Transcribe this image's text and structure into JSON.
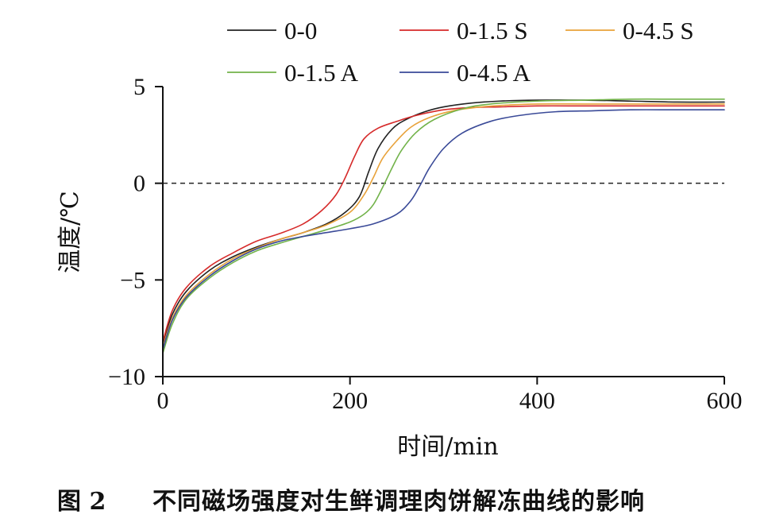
{
  "chart_data": {
    "type": "line",
    "xlabel": "时间/min",
    "ylabel": "温度/℃",
    "xlim": [
      0,
      600
    ],
    "ylim": [
      -10,
      5
    ],
    "xticks": [
      0,
      200,
      400,
      600
    ],
    "yticks": [
      5,
      0,
      -5,
      -10
    ],
    "ytick_labels": [
      "5",
      "0",
      "−5",
      "−10"
    ],
    "reference_line": {
      "y": 0,
      "style": "dashed"
    },
    "grid": false,
    "legend_position": "top",
    "series": [
      {
        "name": "0-0",
        "color": "#222222",
        "x": [
          0,
          10,
          25,
          50,
          75,
          100,
          125,
          150,
          175,
          195,
          210,
          220,
          230,
          245,
          260,
          280,
          300,
          330,
          360,
          400,
          450,
          500,
          550,
          600
        ],
        "y": [
          -8.3,
          -6.8,
          -5.6,
          -4.5,
          -3.8,
          -3.3,
          -2.9,
          -2.55,
          -2.1,
          -1.5,
          -0.7,
          0.6,
          1.8,
          2.8,
          3.3,
          3.7,
          3.95,
          4.15,
          4.25,
          4.3,
          4.3,
          4.25,
          4.2,
          4.2
        ]
      },
      {
        "name": "0-1.5 S",
        "color": "#d62a2a",
        "x": [
          0,
          10,
          25,
          50,
          75,
          100,
          125,
          150,
          170,
          185,
          195,
          205,
          215,
          230,
          250,
          270,
          300,
          330,
          360,
          400,
          450,
          500,
          550,
          600
        ],
        "y": [
          -8.2,
          -6.6,
          -5.4,
          -4.3,
          -3.6,
          -3.0,
          -2.6,
          -2.1,
          -1.4,
          -0.6,
          0.3,
          1.4,
          2.3,
          2.85,
          3.2,
          3.5,
          3.8,
          3.92,
          3.95,
          4.0,
          4.0,
          4.0,
          4.0,
          4.0
        ]
      },
      {
        "name": "0-4.5 S",
        "color": "#e8a23a",
        "x": [
          0,
          10,
          25,
          50,
          75,
          100,
          125,
          150,
          175,
          200,
          215,
          225,
          235,
          250,
          265,
          285,
          310,
          340,
          370,
          400,
          450,
          500,
          550,
          600
        ],
        "y": [
          -8.5,
          -7.0,
          -5.8,
          -4.7,
          -3.9,
          -3.35,
          -2.9,
          -2.55,
          -2.15,
          -1.5,
          -0.6,
          0.3,
          1.3,
          2.2,
          2.9,
          3.4,
          3.75,
          3.95,
          4.05,
          4.1,
          4.1,
          4.1,
          4.1,
          4.1
        ]
      },
      {
        "name": "0-1.5 A",
        "color": "#72b34a",
        "x": [
          0,
          10,
          25,
          50,
          75,
          100,
          125,
          150,
          175,
          200,
          215,
          225,
          235,
          245,
          255,
          270,
          290,
          320,
          350,
          400,
          450,
          500,
          550,
          600
        ],
        "y": [
          -8.8,
          -7.3,
          -6.0,
          -4.9,
          -4.1,
          -3.5,
          -3.1,
          -2.75,
          -2.4,
          -2.0,
          -1.6,
          -1.1,
          -0.2,
          0.8,
          1.7,
          2.6,
          3.3,
          3.85,
          4.1,
          4.25,
          4.3,
          4.35,
          4.35,
          4.35
        ]
      },
      {
        "name": "0-4.5 A",
        "color": "#3a4a98",
        "x": [
          0,
          10,
          25,
          50,
          75,
          100,
          125,
          150,
          175,
          200,
          225,
          250,
          265,
          275,
          285,
          300,
          320,
          350,
          380,
          420,
          460,
          500,
          550,
          600
        ],
        "y": [
          -8.6,
          -7.1,
          -5.9,
          -4.8,
          -4.0,
          -3.4,
          -3.0,
          -2.75,
          -2.55,
          -2.35,
          -2.1,
          -1.6,
          -0.9,
          -0.1,
          0.8,
          1.8,
          2.6,
          3.2,
          3.5,
          3.7,
          3.75,
          3.8,
          3.8,
          3.8
        ]
      }
    ]
  },
  "caption": {
    "fig_no": "图 2",
    "text": "不同磁场强度对生鲜调理肉饼解冻曲线的影响"
  }
}
